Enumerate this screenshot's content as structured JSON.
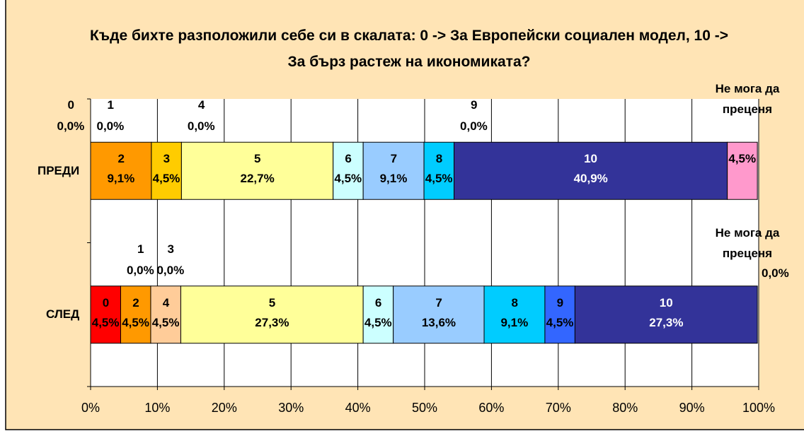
{
  "chart_data": {
    "type": "stacked_bar_100",
    "title": "Къде бихте разположили себе си в скалата: 0 -> За Европейски социален модел, 10 -> За бърз растеж на икономиката?",
    "categories": [
      "ПРЕДИ",
      "СЛЕД"
    ],
    "series": [
      {
        "name": "0",
        "color": "#FF0000",
        "values": [
          0,
          4.5
        ],
        "value_labels": [
          "0,0%",
          "4,5%"
        ]
      },
      {
        "name": "1",
        "color": "#FF6600",
        "values": [
          0,
          0
        ],
        "value_labels": [
          "0,0%",
          "0,0%"
        ]
      },
      {
        "name": "2",
        "color": "#FF9900",
        "values": [
          9.1,
          4.5
        ],
        "value_labels": [
          "9,1%",
          "4,5%"
        ]
      },
      {
        "name": "3",
        "color": "#FFCC00",
        "values": [
          4.5,
          0
        ],
        "value_labels": [
          "4,5%",
          "0,0%"
        ]
      },
      {
        "name": "4",
        "color": "#FFCC99",
        "values": [
          0,
          4.5
        ],
        "value_labels": [
          "0,0%",
          "4,5%"
        ]
      },
      {
        "name": "5",
        "color": "#FFFF99",
        "values": [
          22.7,
          27.3
        ],
        "value_labels": [
          "22,7%",
          "27,3%"
        ]
      },
      {
        "name": "6",
        "color": "#CCFFFF",
        "values": [
          4.5,
          4.5
        ],
        "value_labels": [
          "4,5%",
          "4,5%"
        ]
      },
      {
        "name": "7",
        "color": "#99CCFF",
        "values": [
          9.1,
          13.6
        ],
        "value_labels": [
          "9,1%",
          "13,6%"
        ]
      },
      {
        "name": "8",
        "color": "#00CCFF",
        "values": [
          4.5,
          9.1
        ],
        "value_labels": [
          "4,5%",
          "9,1%"
        ]
      },
      {
        "name": "9",
        "color": "#3366FF",
        "values": [
          0,
          4.5
        ],
        "value_labels": [
          "0,0%",
          "4,5%"
        ]
      },
      {
        "name": "10",
        "color": "#333399",
        "values": [
          40.9,
          27.3
        ],
        "value_labels": [
          "40,9%",
          "27,3%"
        ]
      },
      {
        "name": "Не мога да преценя",
        "color": "#FF99CC",
        "values": [
          4.5,
          0
        ],
        "value_labels": [
          "4,5%",
          "0,0%"
        ]
      }
    ],
    "xlim": [
      0,
      100
    ],
    "xticks": [
      {
        "value": 0,
        "label": "0%"
      },
      {
        "value": 10,
        "label": "10%"
      },
      {
        "value": 20,
        "label": "20%"
      },
      {
        "value": 30,
        "label": "30%"
      },
      {
        "value": 40,
        "label": "40%"
      },
      {
        "value": 50,
        "label": "50%"
      },
      {
        "value": 60,
        "label": "60%"
      },
      {
        "value": 70,
        "label": "70%"
      },
      {
        "value": 80,
        "label": "80%"
      },
      {
        "value": 90,
        "label": "90%"
      },
      {
        "value": 100,
        "label": "100%"
      }
    ],
    "grid": true
  }
}
